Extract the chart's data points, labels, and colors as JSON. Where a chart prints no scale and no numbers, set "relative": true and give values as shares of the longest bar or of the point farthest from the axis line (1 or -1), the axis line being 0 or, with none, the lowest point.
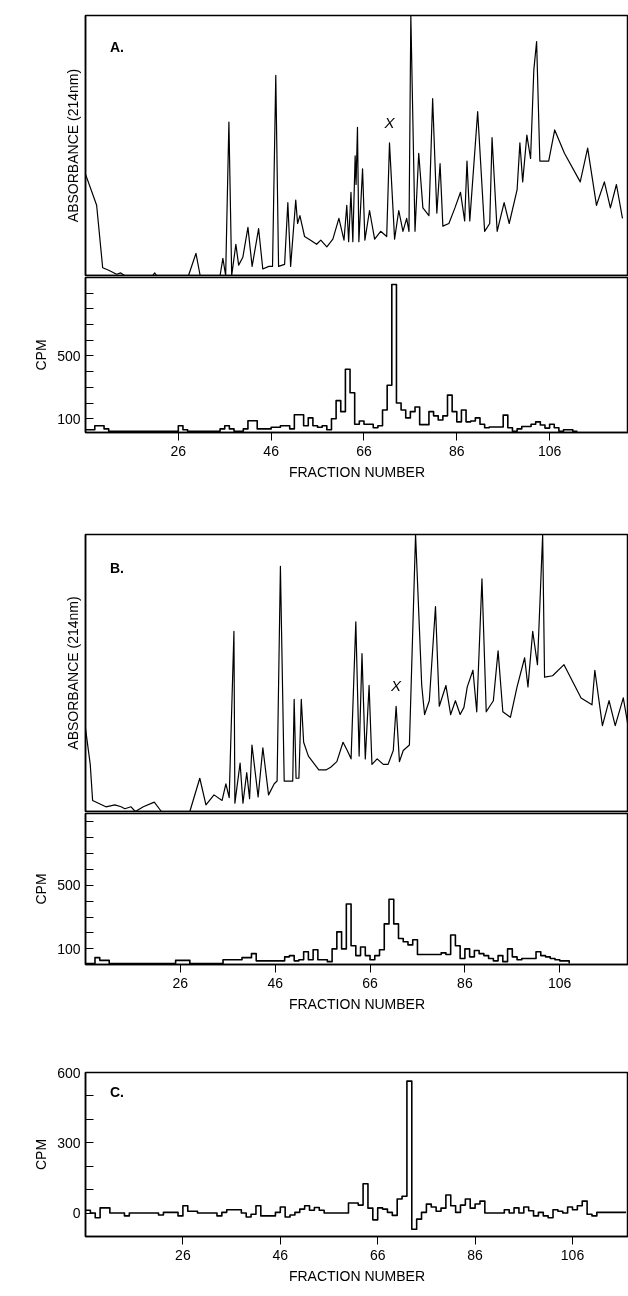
{
  "chart_data": [
    {
      "type": "line",
      "relative": true,
      "color": "#000000",
      "ylabel": "ABSORBANCE (214nm)",
      "xlim": [
        6,
        123
      ],
      "annotations": [
        "A.",
        {
          "text": "X",
          "x": 71.5,
          "y": 0.51
        }
      ],
      "x": [
        6,
        8.4,
        9.7,
        11,
        12.7,
        13.6,
        14.4,
        20.5,
        20.9,
        21.3,
        28.2,
        29.8,
        30.7,
        35,
        35.6,
        36.2,
        36.9,
        37.5,
        38.4,
        39,
        39.9,
        41,
        41.9,
        43.3,
        44.2,
        45.5,
        46.3,
        47,
        47.6,
        48.9,
        49.6,
        50.2,
        51.3,
        51.7,
        52.2,
        53.2,
        54.5,
        55.8,
        56.7,
        58,
        59.3,
        60.6,
        61.7,
        62.3,
        62.7,
        63.2,
        63.6,
        64.1,
        64.3,
        64.6,
        64.9,
        65.7,
        66.2,
        67.2,
        68.3,
        69.6,
        70.9,
        71.5,
        72.6,
        73.5,
        74.4,
        75.2,
        75.7,
        76.1,
        77,
        77.8,
        78.7,
        80,
        80.8,
        81.7,
        82.4,
        83,
        84.3,
        85.6,
        86.8,
        87.7,
        88.2,
        88.8,
        90.5,
        92,
        93.1,
        93.6,
        94.7,
        96.2,
        97.3,
        99,
        99.6,
        100.2,
        101.1,
        101.9,
        102.6,
        103.2,
        103.9,
        105.8,
        107.1,
        109.2,
        112.6,
        114.2,
        116.1,
        117.8,
        119.1,
        120.4,
        121.7
      ],
      "values": [
        0.39,
        0.27,
        0.03,
        0.02,
        0.005,
        0.01,
        0,
        0,
        0.01,
        0,
        0,
        0.085,
        0,
        0,
        0.066,
        0,
        0.59,
        0,
        0.12,
        0.04,
        0.07,
        0.185,
        0.035,
        0.18,
        0.025,
        0.035,
        0.035,
        0.77,
        0.035,
        0.043,
        0.28,
        0.035,
        0.29,
        0.2,
        0.23,
        0.15,
        0.136,
        0.12,
        0.136,
        0.11,
        0.14,
        0.22,
        0.136,
        0.27,
        0.13,
        0.32,
        0.13,
        0.46,
        0.35,
        0.57,
        0.13,
        0.41,
        0.136,
        0.25,
        0.14,
        0.17,
        0.15,
        0.51,
        0.14,
        0.25,
        0.17,
        0.22,
        0.17,
        1.0,
        0.17,
        0.47,
        0.26,
        0.23,
        0.68,
        0.24,
        0.43,
        0.19,
        0.2,
        0.26,
        0.32,
        0.21,
        0.44,
        0.21,
        0.63,
        0.17,
        0.2,
        0.53,
        0.17,
        0.28,
        0.2,
        0.33,
        0.51,
        0.36,
        0.54,
        0.45,
        0.79,
        0.9,
        0.44,
        0.44,
        0.56,
        0.47,
        0.36,
        0.49,
        0.27,
        0.36,
        0.26,
        0.35,
        0.22
      ]
    },
    {
      "type": "step",
      "color": "#000000",
      "ylabel": "CPM",
      "xlabel": "FRACTION NUMBER",
      "xlim": [
        6,
        123
      ],
      "xticks": [
        26,
        46,
        66,
        86,
        106
      ],
      "ylim": [
        12,
        1000
      ],
      "yticks": [
        100,
        {
          "value": 200,
          "label": null
        },
        {
          "value": 300,
          "label": null
        },
        {
          "value": 400,
          "label": null
        },
        500,
        {
          "value": 600,
          "label": null
        },
        {
          "value": 700,
          "label": null
        },
        {
          "value": 800,
          "label": null
        },
        {
          "value": 900,
          "label": null
        }
      ],
      "x": [
        6,
        7,
        8,
        9,
        10,
        11,
        12,
        13,
        14,
        15,
        16,
        17,
        18,
        19,
        20,
        21,
        22,
        23,
        24,
        25,
        26,
        27,
        28,
        29,
        30,
        31,
        32,
        33,
        34,
        35,
        36,
        37,
        38,
        39,
        40,
        41,
        42,
        43,
        44,
        45,
        46,
        47,
        48,
        49,
        50,
        51,
        52,
        53,
        54,
        55,
        56,
        57,
        58,
        59,
        60,
        61,
        62,
        63,
        64,
        65,
        66,
        67,
        68,
        69,
        70,
        71,
        72,
        73,
        74,
        75,
        76,
        77,
        78,
        79,
        80,
        81,
        82,
        83,
        84,
        85,
        86,
        87,
        88,
        89,
        90,
        91,
        92,
        93,
        94,
        95,
        96,
        97,
        98,
        99,
        100,
        101,
        102,
        103,
        104,
        105,
        106,
        107,
        108,
        109,
        110,
        111,
        112
      ],
      "values": [
        30,
        30,
        55,
        55,
        35,
        20,
        20,
        20,
        20,
        20,
        20,
        20,
        20,
        20,
        20,
        20,
        20,
        20,
        20,
        20,
        55,
        30,
        20,
        20,
        20,
        20,
        20,
        20,
        20,
        35,
        55,
        35,
        20,
        20,
        35,
        87,
        87,
        35,
        35,
        35,
        45,
        45,
        55,
        55,
        35,
        125,
        125,
        55,
        105,
        55,
        45,
        55,
        30,
        100,
        215,
        145,
        415,
        265,
        65,
        85,
        65,
        65,
        42,
        55,
        155,
        313,
        955,
        200,
        155,
        105,
        145,
        175,
        62,
        62,
        145,
        118,
        92,
        118,
        250,
        145,
        80,
        155,
        80,
        85,
        105,
        65,
        42,
        47,
        47,
        47,
        123,
        42,
        20,
        35,
        50,
        50,
        65,
        80,
        60,
        40,
        65,
        42,
        20,
        30,
        30,
        20,
        20
      ]
    },
    {
      "type": "line",
      "relative": true,
      "color": "#000000",
      "ylabel": "ABSORBANCE (214nm)",
      "xlim": [
        6,
        120.5
      ],
      "annotations": [
        "B.",
        {
          "text": "X",
          "x": 71.5,
          "y": 0.38
        }
      ],
      "x": [
        6,
        7,
        7.5,
        10.3,
        12.2,
        13.5,
        14.3,
        15.6,
        16.5,
        18.2,
        20.5,
        22,
        28,
        30.1,
        31.4,
        33.1,
        34.8,
        35.6,
        36.3,
        37.3,
        37.5,
        38.6,
        39.2,
        40,
        40.6,
        41.1,
        42.4,
        43.4,
        44.6,
        45.8,
        46.4,
        47.1,
        47.9,
        49.7,
        50,
        50.4,
        51,
        51.5,
        52,
        53,
        55.2,
        56.7,
        57.7,
        59,
        60.3,
        61.2,
        62,
        63,
        63.7,
        64.3,
        65,
        65.8,
        66.4,
        67.5,
        68.8,
        69.8,
        70.9,
        71.5,
        72.2,
        73,
        74.3,
        75.6,
        76.9,
        77.5,
        78.5,
        79.8,
        80.6,
        82,
        83,
        84,
        85,
        85.8,
        86.5,
        87.7,
        88.5,
        89.6,
        90.5,
        92,
        93,
        94,
        95.6,
        97,
        98.6,
        99.3,
        100.3,
        101.3,
        102.4,
        102.8,
        104.5,
        106.9,
        110.5,
        112.8,
        113.4,
        115,
        116.4,
        117.7,
        119.4,
        120.5
      ],
      "values": [
        0.3,
        0.17,
        0.04,
        0.017,
        0.024,
        0.017,
        0.01,
        0.017,
        0,
        0.017,
        0.034,
        0,
        0,
        0.12,
        0.024,
        0.06,
        0.04,
        0.1,
        0.05,
        0.65,
        0.03,
        0.175,
        0.03,
        0.14,
        0.046,
        0.24,
        0.053,
        0.23,
        0.06,
        0.1,
        0.11,
        0.885,
        0.11,
        0.11,
        0.405,
        0.12,
        0.12,
        0.405,
        0.25,
        0.2,
        0.15,
        0.15,
        0.16,
        0.18,
        0.25,
        0.22,
        0.19,
        0.685,
        0.2,
        0.57,
        0.19,
        0.455,
        0.17,
        0.19,
        0.17,
        0.17,
        0.22,
        0.38,
        0.18,
        0.22,
        0.24,
        1.0,
        0.455,
        0.35,
        0.4,
        0.74,
        0.38,
        0.455,
        0.35,
        0.4,
        0.35,
        0.376,
        0.45,
        0.51,
        0.36,
        0.84,
        0.36,
        0.4,
        0.58,
        0.36,
        0.34,
        0.45,
        0.555,
        0.45,
        0.65,
        0.53,
        1.0,
        0.485,
        0.49,
        0.53,
        0.41,
        0.385,
        0.51,
        0.31,
        0.4,
        0.31,
        0.41,
        0.3
      ]
    },
    {
      "type": "step",
      "color": "#000000",
      "ylabel": "CPM",
      "xlabel": "FRACTION NUMBER",
      "xlim": [
        6,
        120.5
      ],
      "xticks": [
        26,
        46,
        66,
        86,
        106
      ],
      "ylim": [
        2,
        950
      ],
      "yticks": [
        100,
        {
          "value": 200,
          "label": null
        },
        {
          "value": 300,
          "label": null
        },
        {
          "value": 400,
          "label": null
        },
        500,
        {
          "value": 600,
          "label": null
        },
        {
          "value": 700,
          "label": null
        },
        {
          "value": 800,
          "label": null
        },
        {
          "value": 900,
          "label": null
        }
      ],
      "x": [
        6,
        7,
        8,
        9,
        10,
        11,
        12,
        13,
        14,
        15,
        16,
        17,
        18,
        19,
        20,
        21,
        22,
        23,
        24,
        25,
        26,
        27,
        28,
        29,
        30,
        31,
        32,
        33,
        34,
        35,
        36,
        37,
        38,
        39,
        40,
        41,
        42,
        43,
        44,
        45,
        46,
        47,
        48,
        49,
        50,
        51,
        52,
        53,
        54,
        55,
        56,
        57,
        58,
        59,
        60,
        61,
        62,
        63,
        64,
        65,
        66,
        67,
        68,
        69,
        70,
        71,
        72,
        73,
        74,
        75,
        76,
        77,
        78,
        79,
        80,
        81,
        82,
        83,
        84,
        85,
        86,
        87,
        88,
        89,
        90,
        91,
        92,
        93,
        94,
        95,
        96,
        97,
        98,
        99,
        100,
        101,
        102,
        103,
        104,
        105,
        106,
        107,
        108
      ],
      "values": [
        8,
        8,
        45,
        28,
        28,
        8,
        8,
        8,
        8,
        8,
        8,
        8,
        8,
        8,
        8,
        8,
        8,
        8,
        8,
        28,
        28,
        28,
        8,
        8,
        8,
        8,
        8,
        8,
        8,
        32,
        32,
        32,
        32,
        45,
        45,
        70,
        25,
        25,
        25,
        25,
        25,
        25,
        50,
        58,
        25,
        32,
        82,
        32,
        95,
        32,
        32,
        20,
        100,
        207,
        100,
        382,
        120,
        58,
        112,
        58,
        32,
        58,
        95,
        257,
        412,
        257,
        165,
        145,
        125,
        157,
        65,
        65,
        65,
        65,
        65,
        75,
        65,
        187,
        120,
        40,
        100,
        50,
        90,
        70,
        58,
        40,
        25,
        58,
        20,
        100,
        50,
        32,
        40,
        40,
        40,
        82,
        58,
        50,
        40,
        32,
        25,
        25,
        8
      ]
    },
    {
      "type": "step",
      "color": "#000000",
      "ylabel": "CPM",
      "xlabel": "FRACTION NUMBER",
      "xlim": [
        6,
        117.5
      ],
      "xticks": [
        26,
        46,
        66,
        86,
        106
      ],
      "ylim": [
        -100,
        600
      ],
      "yticks": [
        0,
        {
          "value": 100,
          "label": null
        },
        {
          "value": 200,
          "label": null
        },
        300,
        {
          "value": 400,
          "label": null
        },
        {
          "value": 500,
          "label": null
        },
        600
      ],
      "annotations": [
        "C."
      ],
      "x": [
        6,
        7,
        8,
        9,
        10,
        11,
        12,
        13,
        14,
        15,
        16,
        17,
        18,
        19,
        20,
        21,
        22,
        23,
        24,
        25,
        26,
        27,
        28,
        29,
        30,
        31,
        32,
        33,
        34,
        35,
        36,
        37,
        38,
        39,
        40,
        41,
        42,
        43,
        44,
        45,
        46,
        47,
        48,
        49,
        50,
        51,
        52,
        53,
        54,
        55,
        56,
        57,
        58,
        59,
        60,
        61,
        62,
        63,
        64,
        65,
        66,
        67,
        68,
        69,
        70,
        71,
        72,
        73,
        74,
        75,
        76,
        77,
        78,
        79,
        80,
        81,
        82,
        83,
        84,
        85,
        86,
        87,
        88,
        89,
        90,
        91,
        92,
        93,
        94,
        95,
        96,
        97,
        98,
        99,
        100,
        101,
        102,
        103,
        104,
        105,
        106,
        107,
        108,
        109,
        110,
        111,
        112,
        113,
        114,
        115,
        116,
        117
      ],
      "values": [
        12,
        0,
        -20,
        22,
        22,
        0,
        0,
        0,
        -12,
        0,
        0,
        0,
        0,
        0,
        0,
        -8,
        3,
        3,
        3,
        -12,
        31,
        8,
        8,
        0,
        0,
        0,
        0,
        -12,
        3,
        14,
        14,
        14,
        0,
        -17,
        -5,
        31,
        -12,
        -12,
        -12,
        3,
        26,
        -17,
        -8,
        3,
        17,
        31,
        12,
        24,
        12,
        0,
        0,
        0,
        0,
        0,
        43,
        43,
        34,
        125,
        21,
        -29,
        22,
        17,
        3,
        -10,
        60,
        72,
        563,
        -69,
        -26,
        3,
        38,
        26,
        8,
        21,
        77,
        31,
        3,
        34,
        60,
        21,
        39,
        51,
        0,
        0,
        0,
        0,
        14,
        0,
        22,
        0,
        26,
        10,
        -12,
        3,
        -12,
        -20,
        14,
        8,
        0,
        26,
        14,
        31,
        51,
        -5,
        -12,
        3,
        3,
        3,
        3,
        3,
        3,
        3
      ]
    }
  ]
}
